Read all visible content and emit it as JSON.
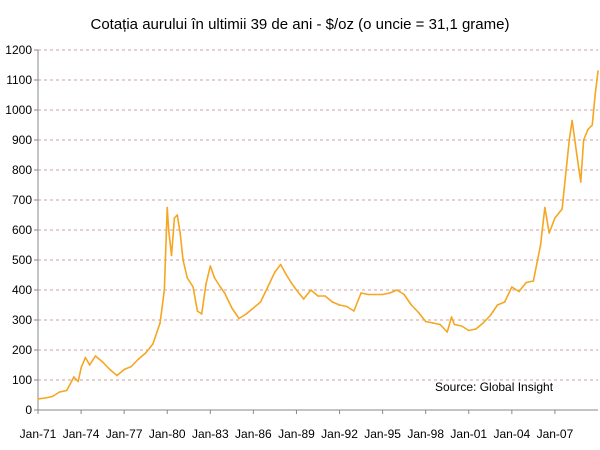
{
  "chart_data": {
    "type": "line",
    "title": "Cotația aurului în ultimii 39 de ani - $/oz (o uncie = 31,1 grame)",
    "source": "Source: Global Insight",
    "xlabel": "",
    "ylabel": "",
    "ylim": [
      0,
      1200
    ],
    "y_ticks": [
      0,
      100,
      200,
      300,
      400,
      500,
      600,
      700,
      800,
      900,
      1000,
      1100,
      1200
    ],
    "x_tick_labels": [
      "Jan-71",
      "Jan-74",
      "Jan-77",
      "Jan-80",
      "Jan-83",
      "Jan-86",
      "Jan-89",
      "Jan-92",
      "Jan-95",
      "Jan-98",
      "Jan-01",
      "Jan-04",
      "Jan-07"
    ],
    "x_tick_years": [
      1971,
      1974,
      1977,
      1980,
      1983,
      1986,
      1989,
      1992,
      1995,
      1998,
      2001,
      2004,
      2007
    ],
    "xlim_years": [
      1971,
      2010
    ],
    "grid": "horizontal dashed",
    "line_color": "#f5a623",
    "grid_color": "#c08080",
    "series": [
      {
        "name": "",
        "points": [
          [
            1971.0,
            37
          ],
          [
            1971.5,
            40
          ],
          [
            1972.0,
            45
          ],
          [
            1972.5,
            60
          ],
          [
            1973.0,
            65
          ],
          [
            1973.5,
            110
          ],
          [
            1973.8,
            95
          ],
          [
            1974.0,
            140
          ],
          [
            1974.3,
            175
          ],
          [
            1974.6,
            150
          ],
          [
            1975.0,
            180
          ],
          [
            1975.5,
            160
          ],
          [
            1976.0,
            135
          ],
          [
            1976.5,
            115
          ],
          [
            1977.0,
            135
          ],
          [
            1977.5,
            145
          ],
          [
            1978.0,
            170
          ],
          [
            1978.5,
            190
          ],
          [
            1979.0,
            220
          ],
          [
            1979.5,
            290
          ],
          [
            1979.8,
            400
          ],
          [
            1980.0,
            675
          ],
          [
            1980.1,
            600
          ],
          [
            1980.3,
            515
          ],
          [
            1980.5,
            640
          ],
          [
            1980.7,
            650
          ],
          [
            1980.9,
            590
          ],
          [
            1981.1,
            500
          ],
          [
            1981.4,
            440
          ],
          [
            1981.8,
            410
          ],
          [
            1982.1,
            330
          ],
          [
            1982.4,
            320
          ],
          [
            1982.7,
            420
          ],
          [
            1983.0,
            480
          ],
          [
            1983.3,
            440
          ],
          [
            1983.7,
            410
          ],
          [
            1984.0,
            390
          ],
          [
            1984.5,
            340
          ],
          [
            1985.0,
            305
          ],
          [
            1985.5,
            320
          ],
          [
            1986.0,
            340
          ],
          [
            1986.5,
            360
          ],
          [
            1987.0,
            410
          ],
          [
            1987.5,
            460
          ],
          [
            1987.9,
            485
          ],
          [
            1988.3,
            450
          ],
          [
            1988.7,
            420
          ],
          [
            1989.0,
            400
          ],
          [
            1989.5,
            370
          ],
          [
            1990.0,
            400
          ],
          [
            1990.5,
            380
          ],
          [
            1991.0,
            380
          ],
          [
            1991.5,
            360
          ],
          [
            1992.0,
            350
          ],
          [
            1992.5,
            345
          ],
          [
            1993.0,
            330
          ],
          [
            1993.5,
            390
          ],
          [
            1994.0,
            385
          ],
          [
            1994.5,
            385
          ],
          [
            1995.0,
            385
          ],
          [
            1995.5,
            390
          ],
          [
            1996.0,
            400
          ],
          [
            1996.5,
            385
          ],
          [
            1997.0,
            350
          ],
          [
            1997.5,
            325
          ],
          [
            1998.0,
            295
          ],
          [
            1998.5,
            290
          ],
          [
            1999.0,
            285
          ],
          [
            1999.5,
            260
          ],
          [
            1999.8,
            310
          ],
          [
            2000.0,
            285
          ],
          [
            2000.5,
            280
          ],
          [
            2001.0,
            265
          ],
          [
            2001.5,
            270
          ],
          [
            2002.0,
            290
          ],
          [
            2002.5,
            315
          ],
          [
            2003.0,
            350
          ],
          [
            2003.5,
            360
          ],
          [
            2004.0,
            410
          ],
          [
            2004.5,
            395
          ],
          [
            2005.0,
            425
          ],
          [
            2005.5,
            430
          ],
          [
            2006.0,
            550
          ],
          [
            2006.3,
            675
          ],
          [
            2006.6,
            590
          ],
          [
            2007.0,
            640
          ],
          [
            2007.5,
            670
          ],
          [
            2008.0,
            900
          ],
          [
            2008.2,
            965
          ],
          [
            2008.5,
            860
          ],
          [
            2008.8,
            760
          ],
          [
            2009.0,
            900
          ],
          [
            2009.3,
            935
          ],
          [
            2009.6,
            950
          ],
          [
            2009.8,
            1050
          ],
          [
            2010.0,
            1130
          ]
        ]
      }
    ]
  }
}
